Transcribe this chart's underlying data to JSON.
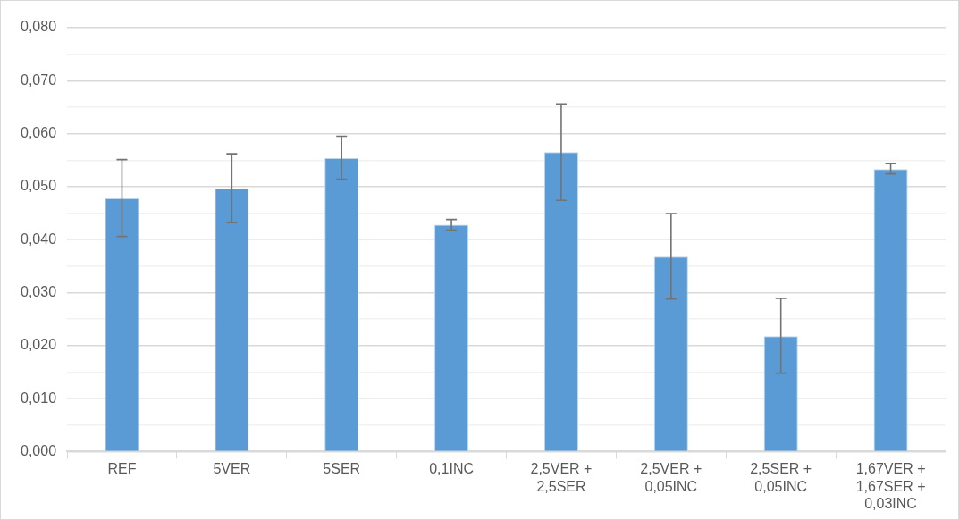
{
  "chart_data": {
    "type": "bar",
    "categories": [
      "REF",
      "5VER",
      "5SER",
      "0,1INC",
      "2,5VER + 2,5SER",
      "2,5VER + 0,05INC",
      "2,5SER + 0,05INC",
      "1,67VER + 1,67SER + 0,03INC"
    ],
    "values": [
      0.0478,
      0.0497,
      0.0554,
      0.0428,
      0.0565,
      0.0368,
      0.0218,
      0.0533
    ],
    "errors": [
      [
        0.0406,
        0.0551
      ],
      [
        0.0432,
        0.0562
      ],
      [
        0.0514,
        0.0595
      ],
      [
        0.0418,
        0.0438
      ],
      [
        0.0474,
        0.0656
      ],
      [
        0.0288,
        0.0449
      ],
      [
        0.0148,
        0.0289
      ],
      [
        0.0524,
        0.0544
      ]
    ],
    "color": "#5b9bd5",
    "ylim": [
      0,
      0.08
    ],
    "yticks": [
      {
        "value": 0,
        "label": "0,000"
      },
      {
        "value": 0.005,
        "label": null
      },
      {
        "value": 0.01,
        "label": "0,010"
      },
      {
        "value": 0.015,
        "label": null
      },
      {
        "value": 0.02,
        "label": "0,020"
      },
      {
        "value": 0.025,
        "label": null
      },
      {
        "value": 0.03,
        "label": "0,030"
      },
      {
        "value": 0.035,
        "label": null
      },
      {
        "value": 0.04,
        "label": "0,040"
      },
      {
        "value": 0.045,
        "label": null
      },
      {
        "value": 0.05,
        "label": "0,050"
      },
      {
        "value": 0.055,
        "label": null
      },
      {
        "value": 0.06,
        "label": "0,060"
      },
      {
        "value": 0.065,
        "label": null
      },
      {
        "value": 0.07,
        "label": "0,070"
      },
      {
        "value": 0.075,
        "label": null
      },
      {
        "value": 0.08,
        "label": "0,080"
      }
    ],
    "grid": "y",
    "legend": false
  }
}
